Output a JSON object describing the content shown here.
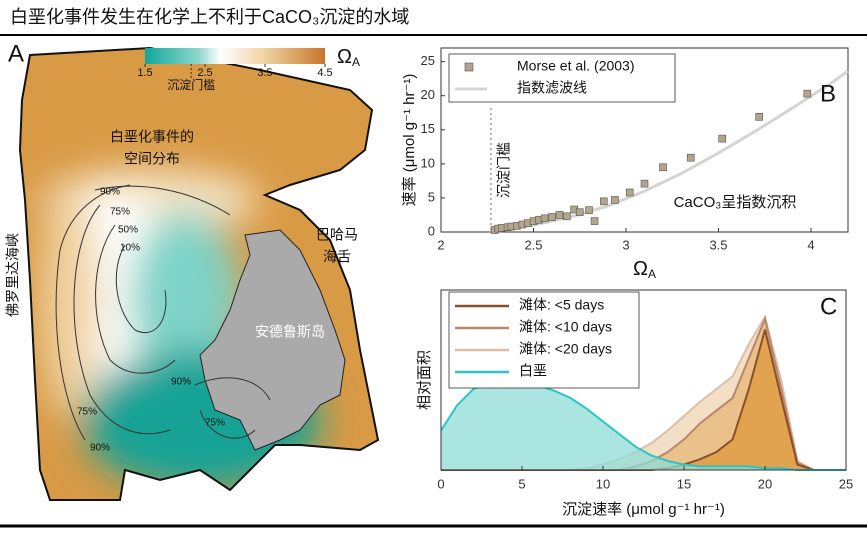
{
  "title": "白垩化事件发生在化学上不利于CaCO₃沉淀的水域",
  "map": {
    "panel": "A",
    "colorbar": {
      "lim": [
        1.5,
        4.5
      ],
      "ticks": [
        1.5,
        2.5,
        3.5,
        4.5
      ],
      "label": "Ω",
      "label_sub": "A",
      "threshold": 2.27,
      "threshold_label": "沉淀门槛"
    },
    "labels": {
      "whiting": [
        "白垩化事件的",
        "空间分布"
      ],
      "strait": "佛罗里达海峡",
      "tongue": [
        "巴哈马",
        "海舌"
      ],
      "island": "安德鲁斯岛"
    },
    "contour_labels": [
      "90%",
      "75%",
      "50%",
      "10%",
      "90%",
      "75%",
      "75%",
      "90%"
    ]
  },
  "chart_data": [
    {
      "type": "scatter",
      "panel": "B",
      "x_label": "Ω",
      "x_label_sub": "A",
      "y_label": "速率 (μmol g⁻¹ hr⁻¹)",
      "annotation": "CaCO₃呈指数沉积",
      "threshold_x": 2.27,
      "threshold_label": "沉淀门槛",
      "xlim": [
        2,
        4.2
      ],
      "xticks": [
        2,
        2.5,
        3,
        3.5,
        4
      ],
      "ylim": [
        0,
        27
      ],
      "yticks": [
        0,
        5,
        10,
        15,
        20,
        25
      ],
      "series": [
        {
          "name": "Morse et al. (2003)",
          "color": "#b3a48c",
          "x": [
            2.29,
            2.31,
            2.33,
            2.36,
            2.38,
            2.41,
            2.44,
            2.47,
            2.5,
            2.53,
            2.56,
            2.6,
            2.64,
            2.68,
            2.72,
            2.75,
            2.8,
            2.83,
            2.88,
            2.94,
            3.02,
            3.1,
            3.2,
            3.35,
            3.52,
            3.72,
            3.98
          ],
          "values": [
            0.3,
            0.5,
            0.6,
            0.7,
            0.8,
            0.9,
            1.1,
            1.3,
            1.6,
            1.8,
            2.0,
            2.2,
            2.5,
            2.3,
            3.3,
            2.9,
            3.2,
            1.6,
            4.5,
            4.7,
            5.8,
            7.1,
            9.5,
            10.9,
            13.7,
            16.9,
            20.3
          ]
        },
        {
          "name": "指数滤波线",
          "color": "#d4d4d4",
          "x": [
            2.3,
            2.5,
            2.7,
            2.9,
            3.1,
            3.3,
            3.5,
            3.7,
            3.9,
            4.1,
            4.2
          ],
          "values": [
            0.3,
            1.0,
            2.2,
            3.8,
            6.0,
            8.6,
            11.6,
            14.8,
            18.2,
            21.7,
            23.6
          ]
        }
      ]
    },
    {
      "type": "area",
      "panel": "C",
      "x_label": "沉淀速率 (μmol g⁻¹ hr⁻¹)",
      "y_label": "相对面积",
      "xlim": [
        0,
        25
      ],
      "xticks": [
        0,
        5,
        10,
        15,
        20,
        25
      ],
      "ylim": [
        0,
        1
      ],
      "x": [
        0,
        1,
        2,
        3,
        4,
        5,
        6,
        7,
        8,
        9,
        10,
        11,
        12,
        13,
        14,
        15,
        16,
        17,
        18,
        19,
        20,
        21,
        22,
        23,
        24,
        25
      ],
      "series": [
        {
          "name": "滩体: <5 days",
          "color": "#8a4f2c",
          "fill": "#e0a048",
          "values": [
            0,
            0,
            0,
            0,
            0,
            0,
            0,
            0,
            0,
            0,
            0,
            0,
            0,
            0,
            0.01,
            0.03,
            0.06,
            0.1,
            0.17,
            0.45,
            0.78,
            0.4,
            0.03,
            0,
            0,
            0
          ]
        },
        {
          "name": "滩体: <10 days",
          "color": "#b8866a",
          "fill": "#e9bd84",
          "values": [
            0,
            0,
            0,
            0,
            0,
            0,
            0,
            0,
            0,
            0,
            0,
            0,
            0.02,
            0.05,
            0.1,
            0.17,
            0.26,
            0.33,
            0.4,
            0.62,
            0.84,
            0.45,
            0.04,
            0,
            0,
            0
          ]
        },
        {
          "name": "滩体: <20 days",
          "color": "#dcbfa6",
          "fill": "#f2dcc0",
          "values": [
            0,
            0,
            0,
            0,
            0,
            0,
            0,
            0,
            0,
            0.01,
            0.03,
            0.06,
            0.1,
            0.15,
            0.22,
            0.3,
            0.38,
            0.45,
            0.52,
            0.7,
            0.85,
            0.5,
            0.05,
            0,
            0,
            0
          ]
        },
        {
          "name": "白垩",
          "color": "#2ec4c4",
          "fill": "#8fdcd8",
          "values": [
            0.22,
            0.36,
            0.45,
            0.48,
            0.48,
            0.48,
            0.47,
            0.44,
            0.4,
            0.34,
            0.27,
            0.2,
            0.13,
            0.08,
            0.05,
            0.03,
            0.02,
            0.02,
            0.02,
            0.02,
            0.01,
            0.01,
            0,
            0,
            0,
            0
          ]
        }
      ]
    }
  ]
}
